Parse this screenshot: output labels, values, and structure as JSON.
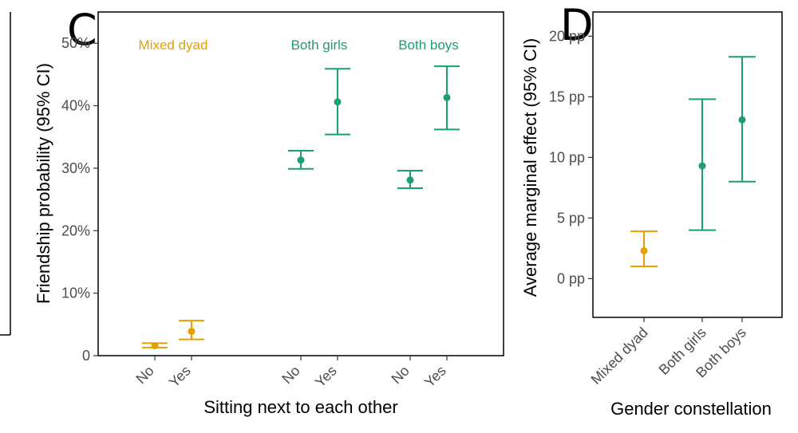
{
  "colors": {
    "mixed": "#E69F00",
    "same": "#1B9E77"
  },
  "chart_data": [
    {
      "panel": "C",
      "type": "scatter",
      "xlabel": "Sitting next to each other",
      "ylabel": "Friendship probability (95% CI)",
      "ylim": [
        0,
        55
      ],
      "yticks": [
        0,
        10,
        20,
        30,
        40,
        50
      ],
      "ytick_labels": [
        "0",
        "10%",
        "20%",
        "30%",
        "40%",
        "50%"
      ],
      "grid": false,
      "groups": [
        {
          "label": "Mixed dyad",
          "color_key": "mixed",
          "points": [
            {
              "x": "No",
              "y": 1.6,
              "low": 1.3,
              "high": 2.0
            },
            {
              "x": "Yes",
              "y": 3.9,
              "low": 2.6,
              "high": 5.6
            }
          ]
        },
        {
          "label": "Both girls",
          "color_key": "same",
          "points": [
            {
              "x": "No",
              "y": 31.3,
              "low": 29.9,
              "high": 32.8
            },
            {
              "x": "Yes",
              "y": 40.6,
              "low": 35.4,
              "high": 45.9
            }
          ]
        },
        {
          "label": "Both boys",
          "color_key": "same",
          "points": [
            {
              "x": "No",
              "y": 28.1,
              "low": 26.8,
              "high": 29.6
            },
            {
              "x": "Yes",
              "y": 41.3,
              "low": 36.2,
              "high": 46.3
            }
          ]
        }
      ]
    },
    {
      "panel": "D",
      "type": "scatter",
      "xlabel": "Gender constellation",
      "ylabel": "Average marginal effect (95% CI)",
      "ylim": [
        -3.2,
        22
      ],
      "yticks": [
        0,
        5,
        10,
        15,
        20
      ],
      "ytick_labels": [
        "0 pp",
        "5 pp",
        "10 pp",
        "15 pp",
        "20 pp"
      ],
      "grid": false,
      "categories": [
        "Mixed dyad",
        "Both girls",
        "Both boys"
      ],
      "points": [
        {
          "x": "Mixed dyad",
          "y": 2.3,
          "low": 1.0,
          "high": 3.9,
          "color_key": "mixed"
        },
        {
          "x": "Both girls",
          "y": 9.3,
          "low": 4.0,
          "high": 14.8,
          "color_key": "same"
        },
        {
          "x": "Both boys",
          "y": 13.1,
          "low": 8.0,
          "high": 18.3,
          "color_key": "same"
        }
      ]
    }
  ]
}
